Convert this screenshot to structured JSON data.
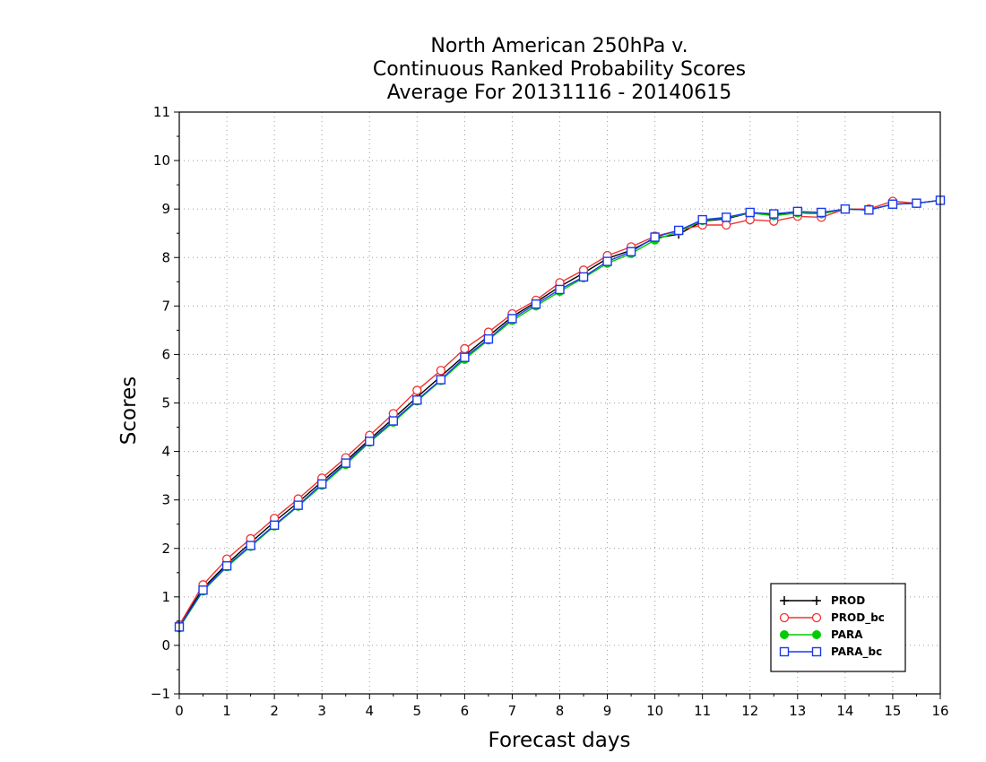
{
  "chart_data": {
    "type": "line",
    "title": [
      "North American 250hPa v.",
      "Continuous Ranked Probability Scores",
      "Average For 20131116 - 20140615"
    ],
    "xlabel": "Forecast days",
    "ylabel": "Scores",
    "xlim": [
      0,
      16
    ],
    "ylim": [
      -1,
      11
    ],
    "xticks": [
      0,
      1,
      2,
      3,
      4,
      5,
      6,
      7,
      8,
      9,
      10,
      11,
      12,
      13,
      14,
      15,
      16
    ],
    "yticks": [
      -1,
      0,
      1,
      2,
      3,
      4,
      5,
      6,
      7,
      8,
      9,
      10,
      11
    ],
    "xtick_labels": [
      "0",
      "1",
      "2",
      "3",
      "4",
      "5",
      "6",
      "7",
      "8",
      "9",
      "10",
      "11",
      "12",
      "13",
      "14",
      "15",
      "16"
    ],
    "ytick_labels": [
      "−1",
      "0",
      "1",
      "2",
      "3",
      "4",
      "5",
      "6",
      "7",
      "8",
      "9",
      "10",
      "11"
    ],
    "grid": true,
    "legend_position": "bottom-right",
    "x": [
      0,
      0.5,
      1,
      1.5,
      2,
      2.5,
      3,
      3.5,
      4,
      4.5,
      5,
      5.5,
      6,
      6.5,
      7,
      7.5,
      8,
      8.5,
      9,
      9.5,
      10,
      10.5,
      11,
      11.5,
      12,
      12.5,
      13,
      13.5,
      14,
      14.5,
      15,
      15.5,
      16
    ],
    "series": [
      {
        "name": "PROD",
        "color": "#000000",
        "marker": "plus",
        "values": [
          0.4,
          1.18,
          1.68,
          2.12,
          2.55,
          2.95,
          3.38,
          3.8,
          4.25,
          4.68,
          5.12,
          5.55,
          5.98,
          6.38,
          6.78,
          7.08,
          7.4,
          7.68,
          7.98,
          8.15,
          8.4,
          8.48,
          8.75,
          8.8,
          8.92,
          8.88,
          8.92,
          8.9,
          9.0,
          8.98,
          9.1,
          9.12,
          9.18
        ]
      },
      {
        "name": "PROD_bc",
        "color": "#ee3333",
        "marker": "circle-open",
        "values": [
          0.42,
          1.25,
          1.78,
          2.2,
          2.62,
          3.02,
          3.45,
          3.87,
          4.33,
          4.78,
          5.26,
          5.67,
          6.12,
          6.46,
          6.84,
          7.12,
          7.48,
          7.74,
          8.04,
          8.22,
          8.44,
          8.56,
          8.67,
          8.67,
          8.78,
          8.75,
          8.85,
          8.83,
          9.0,
          9.0,
          9.16,
          9.12,
          9.18
        ]
      },
      {
        "name": "PARA",
        "color": "#00cc00",
        "marker": "circle-filled",
        "values": [
          0.36,
          1.12,
          1.62,
          2.04,
          2.46,
          2.87,
          3.3,
          3.73,
          4.19,
          4.6,
          5.04,
          5.46,
          5.9,
          6.3,
          6.7,
          7.0,
          7.3,
          7.58,
          7.88,
          8.08,
          8.36,
          8.54,
          8.76,
          8.82,
          8.92,
          8.86,
          8.92,
          8.9,
          9.0,
          8.98,
          9.1,
          9.12,
          9.18
        ]
      },
      {
        "name": "PARA_bc",
        "color": "#1a3aee",
        "marker": "square-open",
        "values": [
          0.38,
          1.14,
          1.64,
          2.06,
          2.48,
          2.89,
          3.33,
          3.76,
          4.21,
          4.63,
          5.06,
          5.48,
          5.94,
          6.32,
          6.74,
          7.04,
          7.34,
          7.6,
          7.92,
          8.12,
          8.42,
          8.56,
          8.78,
          8.83,
          8.93,
          8.9,
          8.95,
          8.93,
          9.0,
          8.98,
          9.1,
          9.12,
          9.18
        ]
      }
    ]
  }
}
